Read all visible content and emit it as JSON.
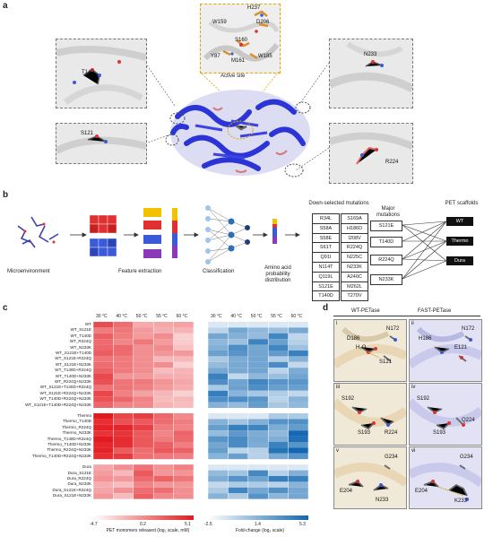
{
  "panel_labels": {
    "a": "a",
    "b": "b",
    "c": "c",
    "d": "d"
  },
  "panel_a": {
    "active_site_label": "Active site",
    "active_site_residues": [
      "H237",
      "W159",
      "D206",
      "S160",
      "Y87",
      "M161",
      "W185"
    ],
    "left_top_residue": "T140",
    "left_bottom_residue": "S121",
    "right_top_residue": "N233",
    "right_bottom_residue": "R224"
  },
  "panel_b": {
    "steps": [
      "Microenvironment",
      "Feature extraction",
      "Classification",
      "Amino acid probability distribution"
    ],
    "down_selected_title": "Down-selected mutations",
    "down_selected": [
      [
        "R34L",
        "S169A"
      ],
      [
        "S58A",
        "H186D"
      ],
      [
        "S58E",
        "I208V"
      ],
      [
        "S61T",
        "R224Q"
      ],
      [
        "Q91I",
        "N225C"
      ],
      [
        "N114T",
        "N233K"
      ],
      [
        "Q119L",
        "A240C"
      ],
      [
        "S121E",
        "M262L"
      ],
      [
        "T140D",
        "T270V"
      ]
    ],
    "major_title": "Major mutations",
    "major": [
      "S121E",
      "T140D",
      "R224Q",
      "N233K"
    ],
    "scaffold_title": "PET scaffolds",
    "scaffolds": [
      "WT",
      "Thermo",
      "Dura"
    ]
  },
  "panel_c": {
    "temperatures": [
      "30 °C",
      "40 °C",
      "50 °C",
      "55 °C",
      "60 °C"
    ],
    "group_wt": [
      "WT",
      "WT_S121E",
      "WT_T140D",
      "WT_R224Q",
      "WT_N233K",
      "WT_S121E+T140D",
      "WT_S121E+R224Q",
      "WT_S121E+N233K",
      "WT_T140D+R224Q",
      "WT_T140D+N233K",
      "WT_R224Q+N233K",
      "WT_S121E+T140D+R224Q",
      "WT_S121E+R224Q+N233K",
      "WT_T140D+R224Q+N233K",
      "WT_S121E+T140D+R224Q+N233K"
    ],
    "group_thermo": [
      "Thermo",
      "Thermo_T140D",
      "Thermo_R224Q",
      "Thermo_N233K",
      "Thermo_T140D+R224Q",
      "Thermo_T140D+N233K",
      "Thermo_R224Q+N233K",
      "Thermo_T140D+R224Q+N233K"
    ],
    "group_dura": [
      "Dura",
      "Dura_S121E",
      "Dura_R224Q",
      "Dura_N233K",
      "Dura_S121E+R224Q",
      "Dura_S121E+N233K"
    ],
    "red_scale": {
      "min": "-4.7",
      "mid": "0.2",
      "max": "5.1",
      "label": "PET monomers released (log₂ scale, mM)"
    },
    "blue_scale": {
      "min": "-2.5",
      "mid": "1.4",
      "max": "5.3",
      "label": "Fold-change (log₂ scale)"
    }
  },
  "panel_d": {
    "left_title": "WT-PETase",
    "right_title": "FAST-PETase",
    "sub": [
      "i",
      "ii",
      "iii",
      "iv",
      "v",
      "vi"
    ],
    "i": [
      "D186",
      "H₂O",
      "N172",
      "S121"
    ],
    "ii": [
      "H186",
      "N172",
      "E121"
    ],
    "iii": [
      "S192",
      "S193",
      "R224"
    ],
    "iv": [
      "S192",
      "S193",
      "Q224"
    ],
    "v": [
      "G234",
      "E204",
      "N233"
    ],
    "vi": [
      "G234",
      "E204",
      "K233"
    ]
  }
}
